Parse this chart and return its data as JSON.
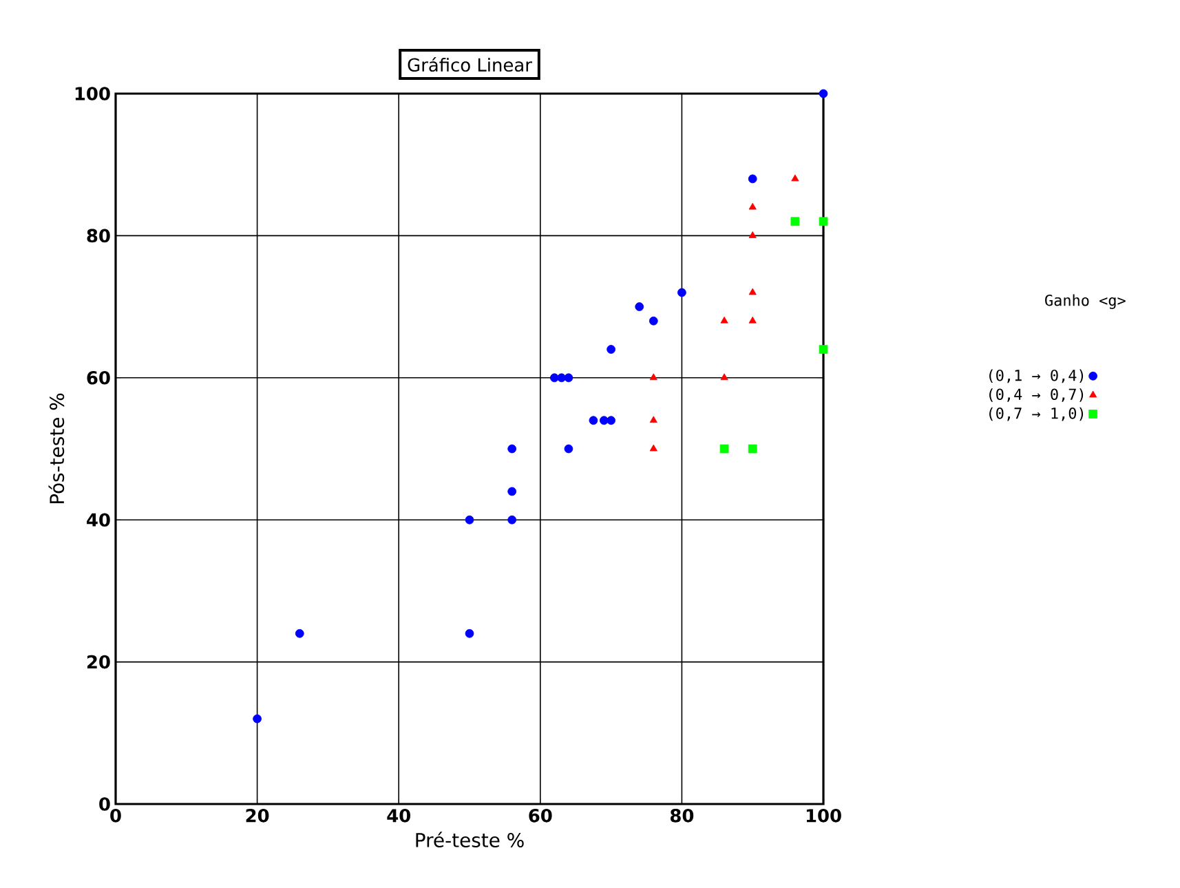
{
  "chart_data": {
    "type": "scatter",
    "title": "Gráfico Linear",
    "xlabel": "Pré-teste %",
    "ylabel": "Pós-teste %",
    "legend_title": "Ganho <g>",
    "xlim": [
      0,
      100
    ],
    "ylim": [
      0,
      100
    ],
    "xticks": [
      0,
      20,
      40,
      60,
      80,
      100
    ],
    "yticks": [
      0,
      20,
      40,
      60,
      80,
      100
    ],
    "grid": true,
    "legend": "right",
    "series": [
      {
        "name": "(0,1 → 0,4)",
        "color": "#0000ff",
        "marker": "circle",
        "x": [
          20,
          26,
          50,
          50,
          56,
          56,
          56,
          64,
          67.5,
          69,
          70,
          62,
          63,
          64,
          70,
          74,
          76,
          80,
          90,
          100
        ],
        "values": [
          12,
          24,
          24,
          40,
          40,
          44,
          50,
          50,
          54,
          54,
          54,
          60,
          60,
          60,
          64,
          70,
          68,
          72,
          88,
          100
        ]
      },
      {
        "name": "(0,4 → 0,7)",
        "color": "#ff0000",
        "marker": "triangle",
        "x": [
          96,
          90,
          90,
          90,
          86,
          90,
          76,
          86,
          76,
          76
        ],
        "values": [
          88,
          84,
          80,
          72,
          68,
          68,
          60,
          60,
          54,
          50
        ]
      },
      {
        "name": "(0,7 → 1,0)",
        "color": "#00ff00",
        "marker": "square",
        "x": [
          96,
          100,
          100,
          86,
          90
        ],
        "values": [
          82,
          82,
          64,
          50,
          50
        ]
      }
    ]
  }
}
